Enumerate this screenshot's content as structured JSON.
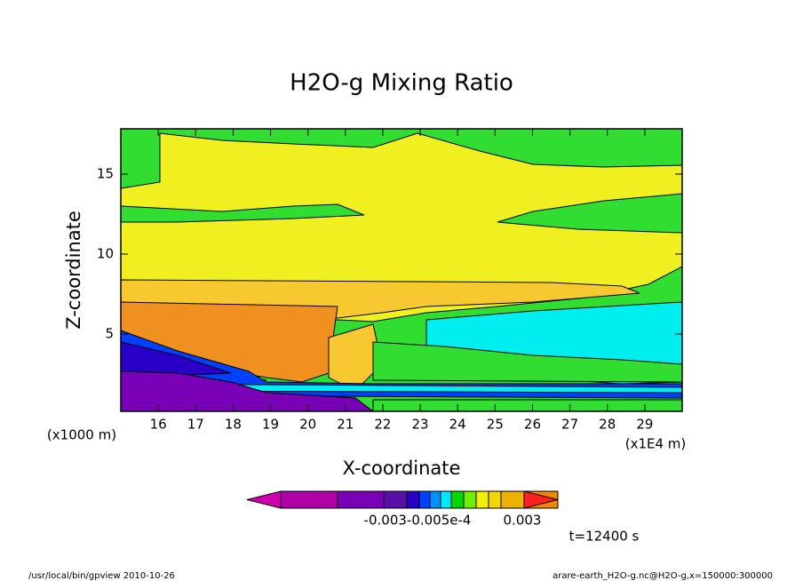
{
  "chart_data": {
    "type": "contour",
    "title": "H2O-g Mixing Ratio",
    "x_label": "X-coordinate",
    "y_label": "Z-coordinate",
    "x_unit": "(x1E4 m)",
    "y_unit": "(x1000 m)",
    "xlim": [
      15,
      30
    ],
    "xticks": [
      16,
      17,
      18,
      19,
      20,
      21,
      22,
      23,
      24,
      25,
      26,
      27,
      28,
      29
    ],
    "ylim": [
      0.17,
      17.83
    ],
    "yticks": [
      5,
      10,
      15
    ],
    "colorbar": {
      "colors": [
        "#d000b0",
        "#b000a8",
        "#7a00b8",
        "#5a10a8",
        "#2800c8",
        "#0040ff",
        "#0090ff",
        "#00e8ff",
        "#00d800",
        "#70f000",
        "#f0f000",
        "#f0d800",
        "#f0b000",
        "#f08800",
        "#ff2020"
      ],
      "labels": [
        "-0.003-0.005e-4",
        "0.003"
      ]
    },
    "time_label": "t=12400 s",
    "footer_left": "/usr/local/bin/gpview  2010-10-26",
    "footer_right": "arare-earth_H2O-g.nc@H2O-g,x=150000:300000"
  }
}
